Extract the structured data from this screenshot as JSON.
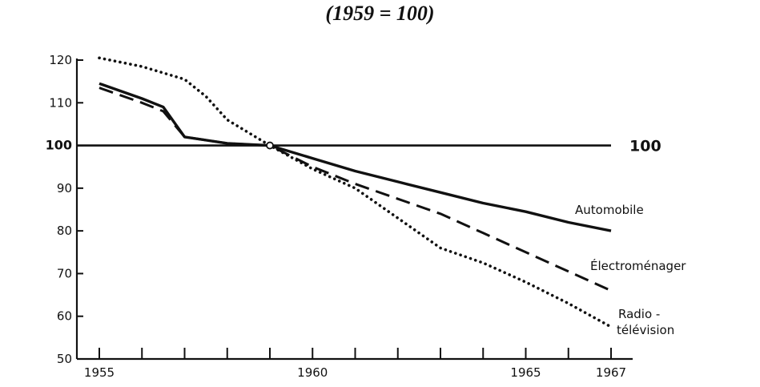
{
  "chart_data": {
    "type": "line",
    "title": "(1959 = 100)",
    "xlim": [
      1955,
      1967.5
    ],
    "ylim": [
      50,
      120
    ],
    "x_ticks": [
      1955,
      1956,
      1957,
      1958,
      1959,
      1960,
      1961,
      1962,
      1963,
      1964,
      1965,
      1966,
      1967
    ],
    "x_tick_labels": [
      {
        "x": 1955,
        "label": "1955"
      },
      {
        "x": 1960,
        "label": "1960"
      },
      {
        "x": 1965,
        "label": "1965"
      },
      {
        "x": 1967,
        "label": "1967"
      }
    ],
    "y_ticks": [
      50,
      60,
      70,
      80,
      90,
      100,
      110,
      120
    ],
    "y_tick_labels": [
      "50",
      "60",
      "70",
      "80",
      "90",
      "100",
      "110",
      "120"
    ],
    "reference_line": {
      "value": 100,
      "label": "100"
    },
    "series": [
      {
        "name": "Automobile",
        "style": "solid",
        "x": [
          1955,
          1956,
          1956.5,
          1957,
          1958,
          1959,
          1960,
          1961,
          1962,
          1963,
          1964,
          1965,
          1966,
          1967
        ],
        "y": [
          114.5,
          111,
          109,
          102,
          100.5,
          100,
          97,
          94,
          91.5,
          89,
          86.5,
          84.5,
          82,
          80
        ]
      },
      {
        "name": "Électroménager",
        "style": "dashed",
        "x": [
          1955,
          1956,
          1956.5,
          1957,
          1958,
          1959,
          1960,
          1961,
          1962,
          1963,
          1964,
          1965,
          1966,
          1967
        ],
        "y": [
          113.5,
          110,
          108,
          102,
          100.5,
          100,
          95,
          91,
          87.5,
          84,
          79.5,
          75,
          70.5,
          66
        ]
      },
      {
        "name": "Radio - télévision",
        "name_lines": [
          "Radio -",
          "télévision"
        ],
        "style": "dotted",
        "x": [
          1955,
          1956,
          1957,
          1957.5,
          1958,
          1959,
          1960,
          1961,
          1962,
          1963,
          1964,
          1965,
          1966,
          1967
        ],
        "y": [
          120.5,
          118.5,
          115.5,
          111.5,
          106,
          100,
          94.5,
          90,
          83,
          76,
          72.5,
          68,
          63,
          57.5
        ]
      }
    ],
    "grid": false,
    "legend": "labels at line ends (right)"
  }
}
